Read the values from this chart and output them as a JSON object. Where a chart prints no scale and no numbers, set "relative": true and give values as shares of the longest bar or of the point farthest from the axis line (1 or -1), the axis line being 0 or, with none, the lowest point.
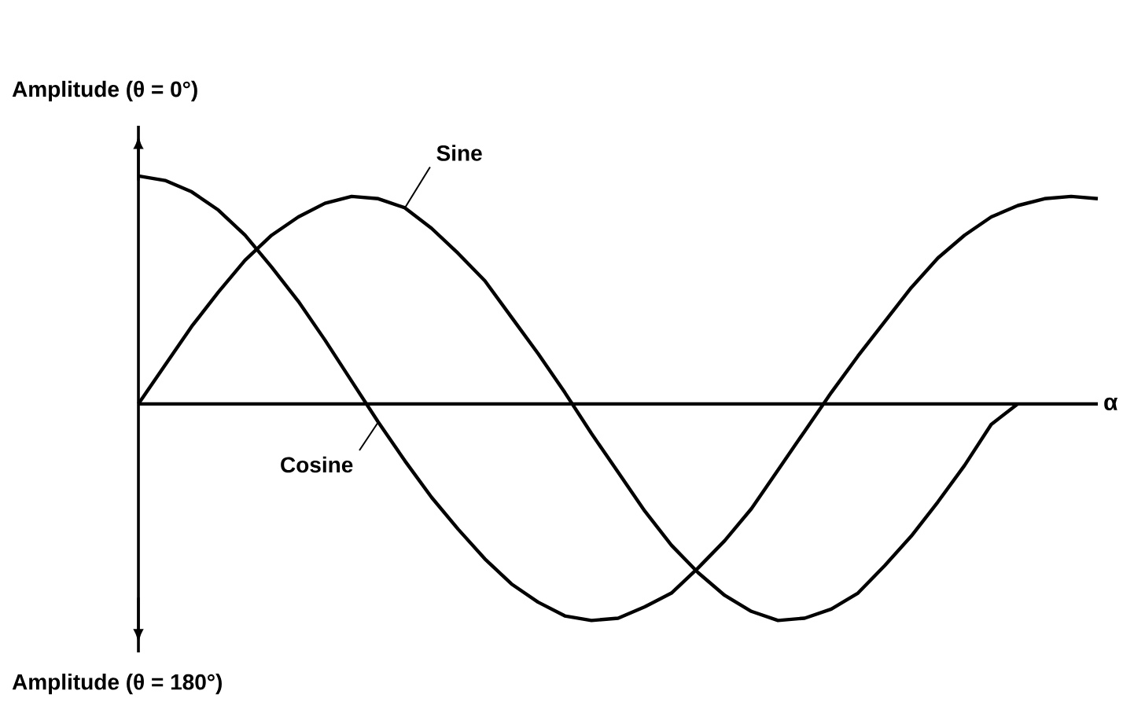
{
  "chart_data": {
    "type": "line",
    "relative": true,
    "xlabel": "α",
    "annotations": [
      "Amplitude (θ = 0°)",
      "Amplitude (θ = 180°)"
    ],
    "categories": [
      null,
      null,
      null,
      null,
      null,
      null,
      null,
      null,
      null,
      null,
      null,
      null,
      null,
      null,
      null,
      null,
      null,
      null,
      null,
      null,
      null,
      null,
      null,
      null,
      null,
      null,
      null,
      null,
      null,
      null,
      null,
      null,
      null,
      null,
      null,
      null,
      null
    ],
    "series": [
      {
        "name": "Sine",
        "color": "#000000",
        "values": [
          0,
          0.17,
          0.34,
          0.49,
          0.63,
          0.74,
          0.82,
          0.88,
          0.91,
          0.9,
          0.86,
          0.77,
          0.66,
          0.54,
          0.38,
          0.22,
          0.05,
          -0.13,
          -0.3,
          -0.47,
          -0.62,
          -0.74,
          -0.84,
          -0.91,
          -0.95,
          -0.94,
          -0.9,
          -0.83,
          -0.71,
          -0.58,
          -0.43,
          -0.27,
          -0.09,
          0,
          null,
          null,
          null
        ]
      },
      {
        "name": "Cosine",
        "color": "#000000",
        "values": [
          1,
          0.98,
          0.93,
          0.85,
          0.74,
          0.6,
          0.45,
          0.28,
          0.1,
          -0.08,
          -0.25,
          -0.41,
          -0.55,
          -0.68,
          -0.79,
          -0.87,
          -0.93,
          -0.95,
          -0.94,
          -0.89,
          -0.83,
          -0.72,
          -0.6,
          -0.46,
          -0.29,
          -0.12,
          0.05,
          0.21,
          0.36,
          0.51,
          0.64,
          0.74,
          0.82,
          0.87,
          0.9,
          0.91,
          0.9
        ]
      }
    ]
  }
}
